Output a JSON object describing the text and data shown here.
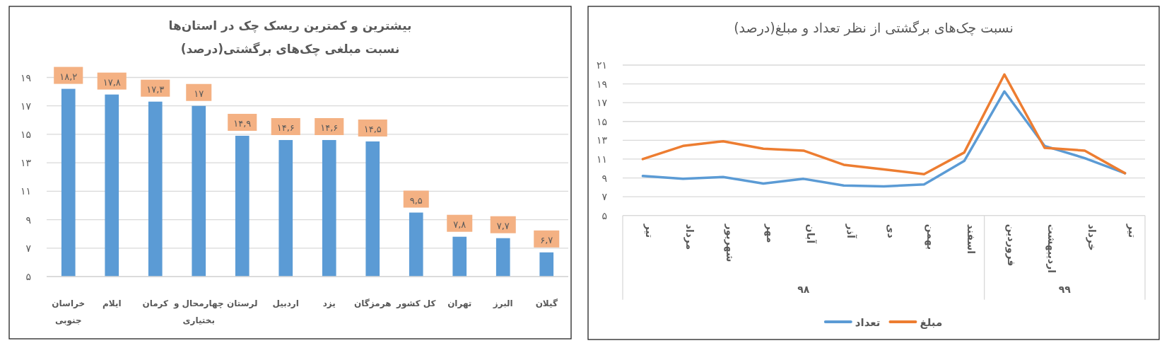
{
  "chart_data": [
    {
      "type": "bar",
      "title": "بیشترین و کمترین ریسک چک در استان‌ها",
      "subtitle": "نسبت مبلغی چک‌های برگشتی(درصد)",
      "categories": [
        "خراسان جنوبی",
        "ایلام",
        "کرمان",
        "چهارمحال و بختیاری",
        "لرستان",
        "اردبیل",
        "یزد",
        "هرمزگان",
        "کل کشور",
        "تهران",
        "البرز",
        "گیلان"
      ],
      "values": [
        18.2,
        17.8,
        17.3,
        17,
        14.9,
        14.6,
        14.6,
        14.5,
        9.5,
        7.8,
        7.7,
        6.7
      ],
      "value_labels": [
        "۱۸,۲",
        "۱۷,۸",
        "۱۷,۳",
        "۱۷",
        "۱۴,۹",
        "۱۴,۶",
        "۱۴,۶",
        "۱۴,۵",
        "۹,۵",
        "۷,۸",
        "۷,۷",
        "۶,۷"
      ],
      "color": "#5b9bd5",
      "ylim": [
        5,
        19
      ],
      "yticks": [
        {
          "value": 5,
          "label": "۵"
        },
        {
          "value": 7,
          "label": "۷"
        },
        {
          "value": 9,
          "label": "۹"
        },
        {
          "value": 11,
          "label": "۱۱"
        },
        {
          "value": 13,
          "label": "۱۳"
        },
        {
          "value": 15,
          "label": "۱۵"
        },
        {
          "value": 17,
          "label": "۱۷"
        },
        {
          "value": 19,
          "label": "۱۹"
        }
      ],
      "grid": "y",
      "legend": false
    },
    {
      "type": "line",
      "title": "نسبت چک‌های برگشتی از نظر تعداد و مبلغ(درصد)",
      "categories": [
        "تیر",
        "مرداد",
        "شهریور",
        "مهر",
        "آبان",
        "آذر",
        "دی",
        "بهمن",
        "اسفند",
        "فروردین",
        "اردیبهشت",
        "خرداد",
        "تیر"
      ],
      "series": [
        {
          "name": "تعداد",
          "color": "#5b9bd5",
          "values": [
            9.2,
            8.9,
            9.1,
            8.4,
            8.9,
            8.2,
            8.1,
            8.3,
            10.8,
            18.2,
            12.4,
            11.1,
            9.5
          ]
        },
        {
          "name": "مبلغ",
          "color": "#ed7d31",
          "values": [
            11.0,
            12.4,
            12.9,
            12.1,
            11.9,
            10.4,
            9.9,
            9.4,
            11.7,
            20.0,
            12.2,
            11.9,
            9.5
          ]
        }
      ],
      "annotations": [
        "۹۸",
        "۹۹"
      ],
      "ylim": [
        5,
        21
      ],
      "yticks": [
        {
          "value": 5,
          "label": "۵"
        },
        {
          "value": 7,
          "label": "۷"
        },
        {
          "value": 9,
          "label": "۹"
        },
        {
          "value": 11,
          "label": "۱۱"
        },
        {
          "value": 13,
          "label": "۱۳"
        },
        {
          "value": 15,
          "label": "۱۵"
        },
        {
          "value": 17,
          "label": "۱۷"
        },
        {
          "value": 19,
          "label": "۱۹"
        },
        {
          "value": 21,
          "label": "۲۱"
        }
      ],
      "grid": "y",
      "legend": "bottom",
      "marker": "none",
      "line_style": "solid"
    }
  ]
}
